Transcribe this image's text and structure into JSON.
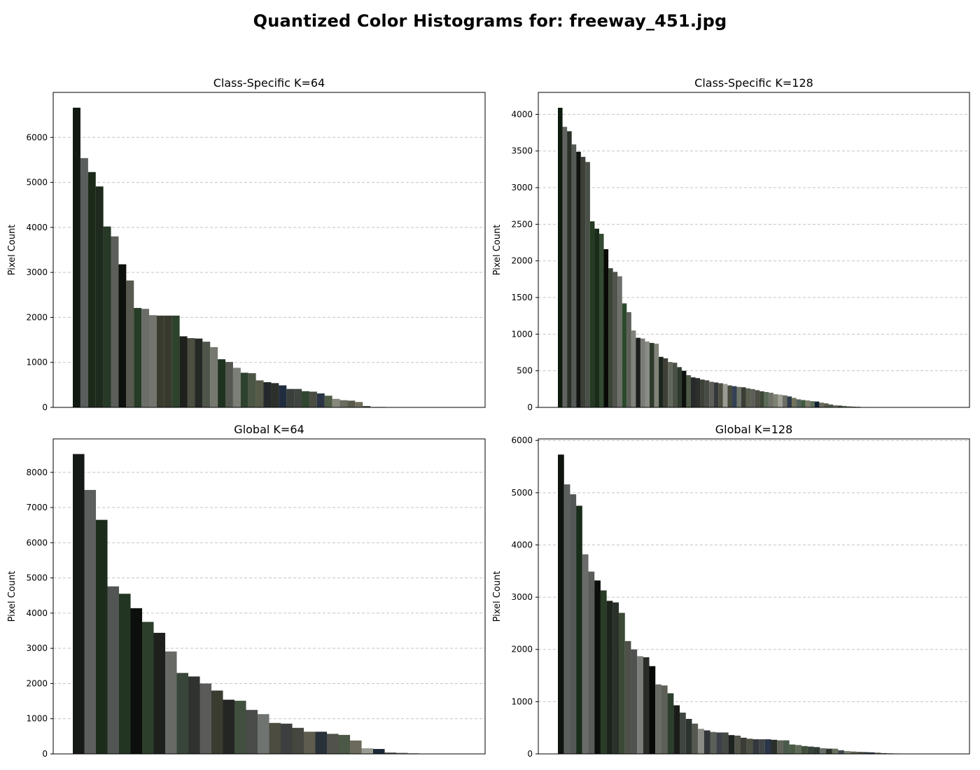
{
  "suptitle": "Quantized Color Histograms for: freeway_451.jpg",
  "chart_data": [
    {
      "type": "bar",
      "title": "Class-Specific K=64",
      "ylabel": "Pixel Count",
      "xlabel": "",
      "ylim": [
        0,
        7000
      ],
      "yticks": [
        0,
        1000,
        2000,
        3000,
        4000,
        5000,
        6000
      ],
      "num_colors": 64,
      "values": [
        6660,
        5540,
        5230,
        4910,
        4020,
        3800,
        3180,
        2820,
        2210,
        2190,
        2050,
        2040,
        2040,
        2040,
        1580,
        1540,
        1530,
        1460,
        1340,
        1070,
        1010,
        880,
        770,
        760,
        600,
        560,
        540,
        490,
        410,
        410,
        360,
        350,
        310,
        260,
        190,
        160,
        150,
        120,
        30,
        10,
        10,
        5
      ],
      "colors": [
        "#111a11",
        "#5a5e5c",
        "#1c2a1a",
        "#1e2a1c",
        "#263a27",
        "#5c5e59",
        "#0d110d",
        "#58594f",
        "#273c26",
        "#6a6d68",
        "#74756f",
        "#383c2e",
        "#373a2c",
        "#2d432c",
        "#1d201d",
        "#4b4e40",
        "#252925",
        "#4e5549",
        "#76786f",
        "#1f3320",
        "#545850",
        "#7c7f76",
        "#2e412e",
        "#4c5644",
        "#565a48",
        "#242a2c",
        "#2d302a",
        "#202d3f",
        "#3a3f3c",
        "#404440",
        "#304630",
        "#4a4c44",
        "#2a3444",
        "#4f5c46",
        "#86887d",
        "#696c5f",
        "#5a5a4c",
        "#706c5e",
        "#3c4a3c",
        "#606254",
        "#2c3c2c",
        "#4e5a50"
      ]
    },
    {
      "type": "bar",
      "title": "Class-Specific K=128",
      "ylabel": "Pixel Count",
      "xlabel": "",
      "ylim": [
        0,
        4300
      ],
      "yticks": [
        0,
        500,
        1000,
        1500,
        2000,
        2500,
        3000,
        3500,
        4000
      ],
      "num_colors": 128,
      "values": [
        4090,
        3830,
        3770,
        3590,
        3490,
        3420,
        3350,
        2540,
        2440,
        2370,
        2160,
        1900,
        1850,
        1790,
        1420,
        1300,
        1050,
        950,
        940,
        900,
        880,
        870,
        690,
        670,
        620,
        610,
        550,
        500,
        440,
        410,
        400,
        380,
        370,
        350,
        340,
        330,
        320,
        300,
        290,
        280,
        275,
        260,
        250,
        235,
        220,
        210,
        200,
        180,
        175,
        165,
        150,
        130,
        110,
        100,
        95,
        85,
        80,
        65,
        55,
        40,
        30,
        25,
        20,
        15,
        10,
        8,
        5,
        3,
        2,
        1
      ],
      "colors": [
        "#0f1a0f",
        "#606360",
        "#2a3028",
        "#565a56",
        "#111511",
        "#3c4038",
        "#495047",
        "#243a22",
        "#1a2b1a",
        "#334a32",
        "#080a08",
        "#3a4436",
        "#51544d",
        "#6d6f6a",
        "#2b4a2c",
        "#5d6058",
        "#80827c",
        "#1b1e1c",
        "#7a7c76",
        "#8a8c86",
        "#2e3b2b",
        "#818378",
        "#1a251c",
        "#3f3f35",
        "#61675b",
        "#4a5044",
        "#2f3a2e",
        "#0e120e",
        "#4e5a46",
        "#262a2b",
        "#2d2f2c",
        "#3b4136",
        "#484c45",
        "#5c5e57",
        "#35383a",
        "#4d4f42",
        "#9a9c94",
        "#464a3c",
        "#334155",
        "#70766a",
        "#3a3d34",
        "#5a6050",
        "#5b5e59",
        "#4c4d45",
        "#3d4838",
        "#5a6b5a",
        "#6f7169",
        "#7e8274",
        "#9ea096",
        "#6a6e65",
        "#313c4a",
        "#707259",
        "#50615a",
        "#3f5a3f",
        "#7c7c6c",
        "#5c6c56",
        "#102030",
        "#6c6c5e",
        "#5a584a",
        "#4a5a4c",
        "#707060",
        "#3c4840",
        "#5c6458",
        "#6c7060",
        "#4a4a40",
        "#3a3a32",
        "#5a5a50",
        "#2a3a3a",
        "#6a6a5c",
        "#4a504a"
      ]
    },
    {
      "type": "bar",
      "title": "Global K=64",
      "ylabel": "Pixel Count",
      "xlabel": "",
      "ylim": [
        0,
        8950
      ],
      "yticks": [
        0,
        1000,
        2000,
        3000,
        4000,
        5000,
        6000,
        7000,
        8000
      ],
      "num_colors": 64,
      "values": [
        8520,
        7500,
        6650,
        4760,
        4550,
        4140,
        3750,
        3440,
        2910,
        2300,
        2200,
        2000,
        1800,
        1540,
        1510,
        1250,
        1130,
        880,
        860,
        740,
        630,
        630,
        570,
        540,
        380,
        160,
        140,
        40,
        30,
        15
      ],
      "colors": [
        "#161a16",
        "#5c5f5d",
        "#1c2c1b",
        "#525553",
        "#213522",
        "#0c0f0c",
        "#2b3f2a",
        "#1d201d",
        "#676a65",
        "#38463a",
        "#303230",
        "#5a5b58",
        "#3b3c30",
        "#242624",
        "#41503f",
        "#4a4c4a",
        "#707470",
        "#4d4c40",
        "#3c3f3e",
        "#45473f",
        "#5d5c4e",
        "#28313a",
        "#51524c",
        "#4a5845",
        "#6c6a5c",
        "#9a9c94",
        "#1d2838",
        "#565a50",
        "#707070",
        "#4a4e46"
      ]
    },
    {
      "type": "bar",
      "title": "Global K=128",
      "ylabel": "Pixel Count",
      "xlabel": "",
      "ylim": [
        0,
        6030
      ],
      "yticks": [
        0,
        1000,
        2000,
        3000,
        4000,
        5000,
        6000
      ],
      "num_colors": 128,
      "values": [
        5730,
        5160,
        4970,
        4750,
        3820,
        3490,
        3320,
        3130,
        2930,
        2900,
        2700,
        2160,
        2000,
        1870,
        1850,
        1680,
        1330,
        1310,
        1160,
        930,
        790,
        670,
        580,
        480,
        450,
        420,
        410,
        410,
        360,
        350,
        310,
        290,
        280,
        280,
        280,
        270,
        260,
        260,
        180,
        170,
        150,
        140,
        130,
        110,
        100,
        100,
        70,
        55,
        45,
        40,
        35,
        30,
        25,
        15,
        10,
        8,
        5,
        3,
        2
      ],
      "colors": [
        "#0f140f",
        "#5c605c",
        "#545856",
        "#1a2c1a",
        "#6a6c6a",
        "#5a5c5a",
        "#0b0e0b",
        "#283c26",
        "#1c241c",
        "#2a302a",
        "#3a4a34",
        "#4e5049",
        "#505250",
        "#7c7e7a",
        "#2a2c28",
        "#070907",
        "#686a64",
        "#5e6058",
        "#2c3e2c",
        "#1a1c1a",
        "#3f4540",
        "#2d3430",
        "#565950",
        "#8a8c84",
        "#32353a",
        "#5b6058",
        "#3c4048",
        "#454a44",
        "#1d2420",
        "#52544a",
        "#3a3c36",
        "#4c5042",
        "#33383e",
        "#404548",
        "#2a3548",
        "#2a2f2a",
        "#5f6256",
        "#4a5a4a",
        "#4a5c46",
        "#606a5a",
        "#40503c",
        "#36443a",
        "#2f3b34",
        "#6a6e68",
        "#2c3328",
        "#6a7060",
        "#404a4c",
        "#7c7e74",
        "#5e6450",
        "#56584e",
        "#3a4040",
        "#24303c",
        "#6a6858",
        "#4a4a42",
        "#3a4838",
        "#5a5a4e",
        "#2a342c",
        "#6c6c5c",
        "#44483e"
      ]
    }
  ]
}
